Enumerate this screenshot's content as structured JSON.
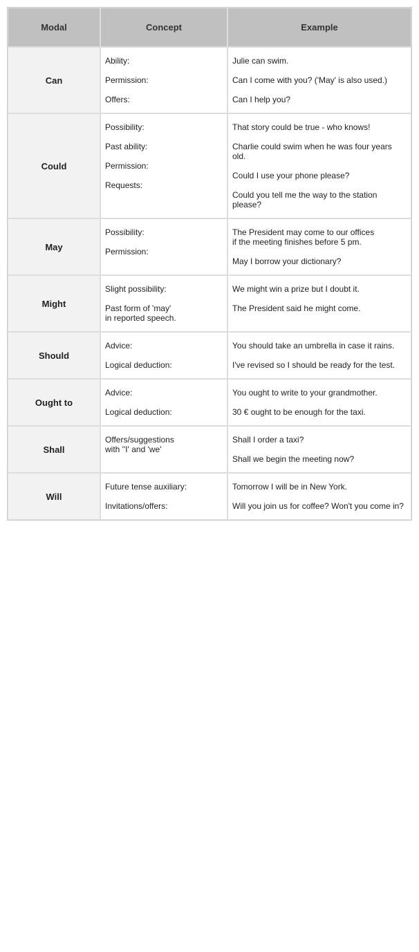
{
  "type": "table",
  "columns": [
    "Modal",
    "Concept",
    "Example"
  ],
  "header_background": "#c0c0c0",
  "modal_cell_background": "#f2f2f2",
  "border_color": "#dddddd",
  "font_family": "Verdana",
  "header_fontsize": 13,
  "cell_fontsize": 12,
  "rows": [
    {
      "modal": "Can",
      "concepts": [
        "Ability:",
        "Permission:",
        "Offers:"
      ],
      "examples": [
        "Julie can swim.",
        "Can I come with you? ('May' is also used.)",
        "Can I help you?"
      ]
    },
    {
      "modal": "Could",
      "concepts": [
        "Possibility:",
        "Past ability:",
        "Permission:",
        "Requests:"
      ],
      "examples": [
        "That story could be true - who knows!",
        "Charlie could swim when he was four years old.",
        "Could I use your phone please?",
        "Could you tell me the way to the station please?"
      ]
    },
    {
      "modal": "May",
      "concepts": [
        "Possibility:",
        "Permission:"
      ],
      "examples": [
        "The President may come to our offices\nif the meeting finishes before 5 pm.",
        "May I borrow your dictionary?"
      ]
    },
    {
      "modal": "Might",
      "concepts": [
        "Slight possibility:",
        "Past form of 'may'\nin reported speech."
      ],
      "examples": [
        "We might win a prize but I doubt it.",
        "The President said he might come."
      ]
    },
    {
      "modal": "Should",
      "concepts": [
        "Advice:",
        "Logical deduction:"
      ],
      "examples": [
        "You should take an umbrella in case it rains.",
        "I've revised so I should be ready for the test."
      ]
    },
    {
      "modal": "Ought to",
      "concepts": [
        "Advice:",
        "Logical deduction:"
      ],
      "examples": [
        "You ought to write to your grandmother.",
        "30 € ought to be enough for the taxi."
      ]
    },
    {
      "modal": "Shall",
      "concepts": [
        "Offers/suggestions\nwith ''I' and 'we'"
      ],
      "examples": [
        "Shall I order a taxi?",
        "Shall we begin the meeting now?"
      ]
    },
    {
      "modal": "Will",
      "concepts": [
        "Future tense auxiliary:",
        "Invitations/offers:"
      ],
      "examples": [
        "Tomorrow I will be in New York.",
        "Will you join us for coffee? Won't you come in?"
      ]
    }
  ]
}
